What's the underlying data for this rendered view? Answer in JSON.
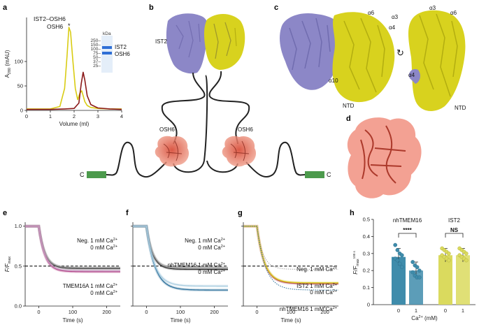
{
  "panels": {
    "a": "a",
    "b": "b",
    "c": "c",
    "d": "d",
    "e": "e",
    "f": "f",
    "g": "g",
    "h": "h"
  },
  "a": {
    "legend": [
      "IST2–OSH6",
      "OSH6"
    ],
    "colors": {
      "ist2_osh6": "#d9cc13",
      "osh6": "#8b1a1a",
      "gel_band": "#2f6fd6"
    },
    "peak_marker": "*",
    "gel": {
      "unit": "kDa",
      "ladder": [
        "250–",
        "150–",
        "100–",
        "75–",
        "50–",
        "37–",
        "25–"
      ],
      "band_labels": [
        "IST2",
        "OSH6"
      ]
    }
  },
  "b": {
    "labels": {
      "ist2": "IST2",
      "osh6_left": "OSH6",
      "osh6_right": "OSH6",
      "c_left": "C",
      "c_right": "C"
    },
    "colors": {
      "ist2_purple": "#8c87c7",
      "ist2_yellow": "#d8d21e",
      "osh6": "#e7735f",
      "tm": "#4c9a4c"
    }
  },
  "c": {
    "labels": {
      "a6": "α6",
      "a3": "α3",
      "a4": "α4",
      "a10": "α10",
      "ntd": "NTD",
      "a3_r": "α3",
      "a6_r": "α6",
      "a4_r": "α4",
      "ntd_r": "NTD",
      "rotate": "↻"
    }
  },
  "chart_data": [
    {
      "panel": "a",
      "type": "line",
      "xlabel": "Volume (ml)",
      "ylabel": "A280 (mAU)",
      "ylabel_main": "A",
      "ylabel_sub": "280",
      "ylabel_rest": " (mAU)",
      "xlim": [
        0,
        4
      ],
      "ylim": [
        0,
        190
      ],
      "xticks": [
        0,
        1,
        2,
        3,
        4
      ],
      "xtick_labels": [
        "0",
        "1",
        "2",
        "3",
        "4"
      ],
      "yticks": [
        0,
        50,
        100
      ],
      "ytick_labels": [
        "0",
        "50",
        "100"
      ],
      "series": [
        {
          "name": "IST2–OSH6",
          "color": "#d9cc13",
          "x": [
            0,
            1.0,
            1.4,
            1.6,
            1.7,
            1.78,
            1.85,
            1.95,
            2.05,
            2.15,
            2.25,
            2.32,
            2.38,
            2.45,
            2.55,
            2.7,
            3.0,
            3.5,
            4.0
          ],
          "y": [
            3,
            3,
            8,
            45,
            110,
            170,
            160,
            100,
            45,
            22,
            36,
            40,
            30,
            18,
            10,
            6,
            4,
            3,
            3
          ]
        },
        {
          "name": "OSH6",
          "color": "#8b1a1a",
          "x": [
            0,
            1.0,
            1.6,
            2.0,
            2.2,
            2.3,
            2.38,
            2.45,
            2.55,
            2.7,
            3.0,
            3.5,
            4.0
          ],
          "y": [
            2,
            2,
            3,
            4,
            15,
            55,
            78,
            62,
            30,
            12,
            5,
            3,
            2
          ]
        }
      ]
    },
    {
      "panel": "e",
      "type": "line",
      "xlabel": "Time (s)",
      "ylabel": "F/Fmax",
      "xlim": [
        -40,
        240
      ],
      "ylim": [
        0.0,
        1.05
      ],
      "xticks": [
        0,
        100,
        200
      ],
      "xtick_labels": [
        "0",
        "100",
        "200"
      ],
      "yticks": [
        0.0,
        0.5,
        1.0
      ],
      "ytick_labels": [
        "0.0",
        "0.5",
        "1.0"
      ],
      "dashed_line": 0.5,
      "series": [
        {
          "name": "Neg. 1 mM Ca2+",
          "color": "#222222",
          "plateau": 0.47,
          "tau": 18
        },
        {
          "name": "0 mM Ca2+",
          "color": "#9a9a9a",
          "plateau": 0.48,
          "tau": 18
        },
        {
          "name": "TMEM16A 1 mM Ca2+",
          "color": "#b0307a",
          "plateau": 0.43,
          "tau": 18
        },
        {
          "name": "0 mM Ca2+",
          "color": "#c799c1",
          "plateau": 0.44,
          "tau": 18
        }
      ],
      "labels": [
        {
          "text": "Neg. 1 mM Ca",
          "sup": "2+",
          "color": "#222222"
        },
        {
          "text": "0 mM Ca",
          "sup": "2+",
          "color": "#9a9a9a"
        },
        {
          "text": "TMEM16A 1 mM Ca",
          "sup": "2+",
          "color": "#b0307a"
        },
        {
          "text": "0 mM Ca",
          "sup": "2+",
          "color": "#c799c1"
        }
      ]
    },
    {
      "panel": "f",
      "type": "line",
      "xlabel": "Time (s)",
      "xlim": [
        -40,
        240
      ],
      "ylim": [
        0.0,
        1.05
      ],
      "xticks": [
        0,
        100,
        200
      ],
      "xtick_labels": [
        "0",
        "100",
        "200"
      ],
      "yticks": [
        0.0,
        0.5,
        1.0
      ],
      "dashed_line": 0.5,
      "series": [
        {
          "name": "Neg. 1 mM Ca2+",
          "color": "#222222",
          "plateau": 0.46,
          "tau": 18
        },
        {
          "name": "0 mM Ca2+",
          "color": "#9a9a9a",
          "plateau": 0.48,
          "tau": 18
        },
        {
          "name": "nhTMEM16 1 mM Ca2+",
          "color": "#2a6f9a",
          "plateau": 0.2,
          "tau": 25
        },
        {
          "name": "0 mM Ca2+",
          "color": "#a9cde0",
          "plateau": 0.25,
          "tau": 24
        }
      ],
      "labels": [
        {
          "text": "Neg. 1 mM Ca",
          "sup": "2+",
          "color": "#222222"
        },
        {
          "text": "0 mM Ca",
          "sup": "2+",
          "color": "#9a9a9a"
        },
        {
          "text": "nhTMEM16 1 mM Ca",
          "sup": "2+",
          "color": "#2a6f9a"
        },
        {
          "text": "0 mM Ca",
          "sup": "2+",
          "color": "#a9cde0"
        }
      ]
    },
    {
      "panel": "g",
      "type": "line",
      "xlabel": "Time (s)",
      "xlim": [
        -40,
        240
      ],
      "ylim": [
        0.0,
        1.05
      ],
      "xticks": [
        0,
        100,
        200
      ],
      "xtick_labels": [
        "0",
        "100",
        "200"
      ],
      "yticks": [
        0.0,
        0.5,
        1.0
      ],
      "dashed_line": 0.5,
      "series": [
        {
          "name": "Neg. 1 mM Ca2+",
          "color": "#a7a7a7",
          "plateau": 0.46,
          "tau": 18,
          "dotted": true
        },
        {
          "name": "IST2 1 mM Ca2+",
          "color": "#b0306a",
          "plateau": 0.28,
          "tau": 22
        },
        {
          "name": "0 mM Ca2+",
          "color": "#d9cc13",
          "plateau": 0.29,
          "tau": 22
        },
        {
          "name": "nhTMEM16 1 mM Ca2+",
          "color": "#2a6f9a",
          "plateau": 0.2,
          "tau": 25,
          "dotted": true
        }
      ],
      "labels": [
        {
          "text": "Neg. 1 mM Ca",
          "sup": "2+",
          "color": "#a7a7a7"
        },
        {
          "text": "IST2 1 mM Ca",
          "sup": "2+",
          "color": "#b0306a"
        },
        {
          "text": "0 mM Ca",
          "sup": "2+",
          "color": "#c8b812"
        },
        {
          "text": "nhTMEM16 1 mM Ca",
          "sup": "2+",
          "color": "#2a6f9a"
        }
      ]
    },
    {
      "panel": "h",
      "type": "bar",
      "xlabel": "Ca2+ (mM)",
      "xlabel_main": "Ca",
      "xlabel_sup": "2+",
      "xlabel_rest": " (mM)",
      "ylabel": "F/Fmax 100 s",
      "ylim": [
        0,
        0.5
      ],
      "yticks": [
        0,
        0.1,
        0.2,
        0.3,
        0.4,
        0.5
      ],
      "ytick_labels": [
        "0",
        "0.1",
        "0.2",
        "0.3",
        "0.4",
        "0.5"
      ],
      "groups": [
        {
          "name": "nhTMEM16",
          "sig": "****",
          "color": "#3f8cab",
          "categories": [
            "0",
            "1"
          ],
          "values": [
            0.28,
            0.2
          ],
          "errors": [
            0.05,
            0.05
          ],
          "points": [
            [
              0.35,
              0.32,
              0.3,
              0.29,
              0.27,
              0.26,
              0.24,
              0.22
            ],
            [
              0.25,
              0.23,
              0.22,
              0.2,
              0.19,
              0.17,
              0.16,
              0.16
            ]
          ]
        },
        {
          "name": "IST2",
          "sig": "NS",
          "color": "#dada5e",
          "categories": [
            "0",
            "1"
          ],
          "values": [
            0.29,
            0.29
          ],
          "errors": [
            0.04,
            0.04
          ],
          "points": [
            [
              0.33,
              0.32,
              0.31,
              0.3,
              0.29,
              0.28,
              0.27,
              0.26
            ],
            [
              0.33,
              0.32,
              0.31,
              0.3,
              0.29,
              0.28,
              0.27,
              0.26
            ]
          ]
        }
      ]
    }
  ]
}
